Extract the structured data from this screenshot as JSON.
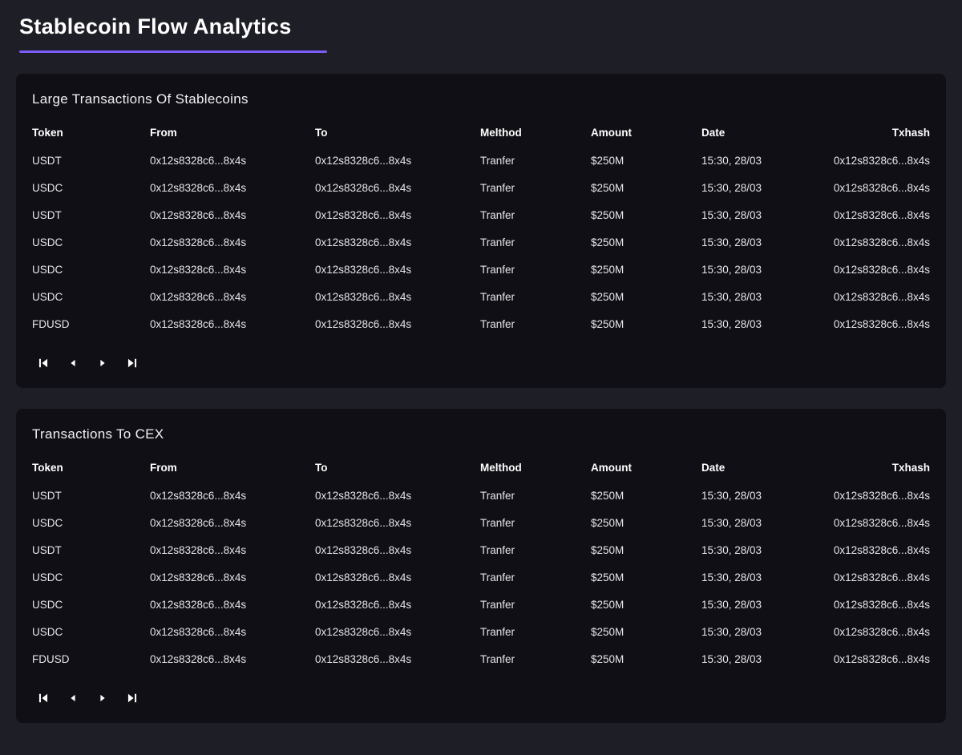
{
  "page": {
    "title": "Stablecoin Flow Analytics"
  },
  "colors": {
    "accent": "#7c5cfa",
    "page_bg": "#1e1e26",
    "panel_bg": "#0f0f15"
  },
  "pagination": {
    "buttons": [
      "first-page",
      "previous-page",
      "next-page",
      "last-page"
    ]
  },
  "tables": [
    {
      "title": "Large Transactions Of Stablecoins",
      "columns": [
        "Token",
        "From",
        "To",
        "Melthod",
        "Amount",
        "Date",
        "Txhash"
      ],
      "rows": [
        [
          "USDT",
          "0x12s8328c6...8x4s",
          "0x12s8328c6...8x4s",
          "Tranfer",
          "$250M",
          "15:30, 28/03",
          "0x12s8328c6...8x4s"
        ],
        [
          "USDC",
          "0x12s8328c6...8x4s",
          "0x12s8328c6...8x4s",
          "Tranfer",
          "$250M",
          "15:30, 28/03",
          "0x12s8328c6...8x4s"
        ],
        [
          "USDT",
          "0x12s8328c6...8x4s",
          "0x12s8328c6...8x4s",
          "Tranfer",
          "$250M",
          "15:30, 28/03",
          "0x12s8328c6...8x4s"
        ],
        [
          "USDC",
          "0x12s8328c6...8x4s",
          "0x12s8328c6...8x4s",
          "Tranfer",
          "$250M",
          "15:30, 28/03",
          "0x12s8328c6...8x4s"
        ],
        [
          "USDC",
          "0x12s8328c6...8x4s",
          "0x12s8328c6...8x4s",
          "Tranfer",
          "$250M",
          "15:30, 28/03",
          "0x12s8328c6...8x4s"
        ],
        [
          "USDC",
          "0x12s8328c6...8x4s",
          "0x12s8328c6...8x4s",
          "Tranfer",
          "$250M",
          "15:30, 28/03",
          "0x12s8328c6...8x4s"
        ],
        [
          "FDUSD",
          "0x12s8328c6...8x4s",
          "0x12s8328c6...8x4s",
          "Tranfer",
          "$250M",
          "15:30, 28/03",
          "0x12s8328c6...8x4s"
        ]
      ]
    },
    {
      "title": "Transactions To CEX",
      "columns": [
        "Token",
        "From",
        "To",
        "Melthod",
        "Amount",
        "Date",
        "Txhash"
      ],
      "rows": [
        [
          "USDT",
          "0x12s8328c6...8x4s",
          "0x12s8328c6...8x4s",
          "Tranfer",
          "$250M",
          "15:30, 28/03",
          "0x12s8328c6...8x4s"
        ],
        [
          "USDC",
          "0x12s8328c6...8x4s",
          "0x12s8328c6...8x4s",
          "Tranfer",
          "$250M",
          "15:30, 28/03",
          "0x12s8328c6...8x4s"
        ],
        [
          "USDT",
          "0x12s8328c6...8x4s",
          "0x12s8328c6...8x4s",
          "Tranfer",
          "$250M",
          "15:30, 28/03",
          "0x12s8328c6...8x4s"
        ],
        [
          "USDC",
          "0x12s8328c6...8x4s",
          "0x12s8328c6...8x4s",
          "Tranfer",
          "$250M",
          "15:30, 28/03",
          "0x12s8328c6...8x4s"
        ],
        [
          "USDC",
          "0x12s8328c6...8x4s",
          "0x12s8328c6...8x4s",
          "Tranfer",
          "$250M",
          "15:30, 28/03",
          "0x12s8328c6...8x4s"
        ],
        [
          "USDC",
          "0x12s8328c6...8x4s",
          "0x12s8328c6...8x4s",
          "Tranfer",
          "$250M",
          "15:30, 28/03",
          "0x12s8328c6...8x4s"
        ],
        [
          "FDUSD",
          "0x12s8328c6...8x4s",
          "0x12s8328c6...8x4s",
          "Tranfer",
          "$250M",
          "15:30, 28/03",
          "0x12s8328c6...8x4s"
        ]
      ]
    }
  ]
}
